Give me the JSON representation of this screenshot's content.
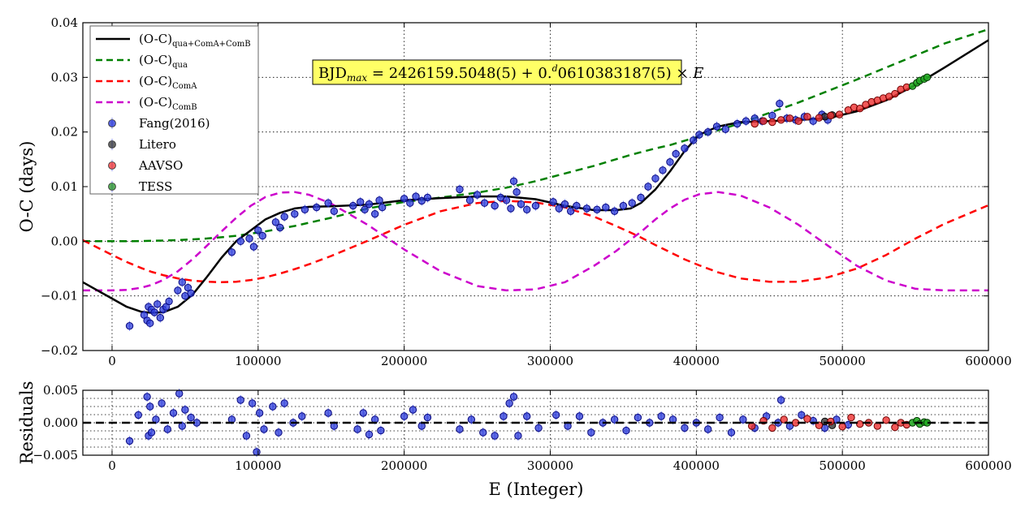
{
  "chart_data": [
    {
      "type": "scatter",
      "panel": "main",
      "ylabel": "O-C (days)",
      "xlim": [
        -20000,
        600000
      ],
      "ylim": [
        -0.02,
        0.04
      ],
      "xticks": [
        0,
        100000,
        200000,
        300000,
        400000,
        500000,
        600000
      ],
      "xtick_labels": [
        "0",
        "100000",
        "200000",
        "300000",
        "400000",
        "500000",
        "600000"
      ],
      "yticks": [
        -0.02,
        -0.01,
        0.0,
        0.01,
        0.02,
        0.03,
        0.04
      ],
      "ytick_labels": [
        "−0.02",
        "−0.01",
        "0.00",
        "0.01",
        "0.02",
        "0.03",
        "0.04"
      ],
      "grid": true,
      "legend_position": "top-left",
      "annotation": {
        "lhs": "BJD",
        "lhs_sub": "max",
        "middle": " = 2426159.5048(5) + 0.",
        "sup": "d",
        "rhs": "0610383187(5) × ",
        "var": "E",
        "background": "#ffff66"
      },
      "legend": [
        {
          "key": "fit",
          "main": "(O-C)",
          "sub": "qua+ComA+ComB",
          "kind": "line",
          "color": "#000000",
          "dashed": false
        },
        {
          "key": "qua",
          "main": "(O-C)",
          "sub": "qua",
          "kind": "line",
          "color": "#008000",
          "dashed": true
        },
        {
          "key": "comA",
          "main": "(O-C)",
          "sub": "ComA",
          "kind": "line",
          "color": "#ff0000",
          "dashed": true
        },
        {
          "key": "comB",
          "main": "(O-C)",
          "sub": "ComB",
          "kind": "line",
          "color": "#cc00cc",
          "dashed": true
        },
        {
          "key": "fang",
          "main": "Fang(2016)",
          "sub": "",
          "kind": "marker",
          "color": "#1020d0"
        },
        {
          "key": "litero",
          "main": "Litero",
          "sub": "",
          "kind": "marker",
          "color": "#222222"
        },
        {
          "key": "aavso",
          "main": "AAVSO",
          "sub": "",
          "kind": "marker",
          "color": "#ee2222"
        },
        {
          "key": "tess",
          "main": "TESS",
          "sub": "",
          "kind": "marker",
          "color": "#118811"
        }
      ],
      "model": {
        "x": [
          -20000,
          0,
          10000,
          20000,
          27000,
          35000,
          45000,
          55000,
          65000,
          75000,
          85000,
          95000,
          105000,
          115000,
          125000,
          135000,
          150000,
          175000,
          200000,
          225000,
          250000,
          270000,
          290000,
          310000,
          330000,
          345000,
          355000,
          362000,
          372000,
          382000,
          392000,
          402000,
          415000,
          430000,
          450000,
          470000,
          490000,
          510000,
          530000,
          550000,
          570000,
          600000
        ],
        "fit": [
          -0.0075,
          -0.0105,
          -0.012,
          -0.0129,
          -0.0131,
          -0.013,
          -0.012,
          -0.0098,
          -0.0065,
          -0.003,
          0.0,
          0.002,
          0.004,
          0.0052,
          0.006,
          0.0063,
          0.0064,
          0.0067,
          0.0075,
          0.0079,
          0.0082,
          0.0082,
          0.0077,
          0.0065,
          0.0057,
          0.0057,
          0.006,
          0.007,
          0.0095,
          0.0128,
          0.0165,
          0.0195,
          0.021,
          0.0218,
          0.022,
          0.0222,
          0.0225,
          0.0238,
          0.0258,
          0.0286,
          0.0318,
          0.0368
        ],
        "qua": [
          0.0,
          0.0,
          1e-05,
          4e-05,
          8e-05,
          0.00013,
          0.00022,
          0.00034,
          0.00051,
          0.00073,
          0.001,
          0.0014,
          0.0018,
          0.0023,
          0.0028,
          0.0034,
          0.0043,
          0.006,
          0.0072,
          0.008,
          0.0089,
          0.0098,
          0.011,
          0.0124,
          0.0138,
          0.015,
          0.0158,
          0.0163,
          0.017,
          0.0176,
          0.0184,
          0.0192,
          0.0203,
          0.0216,
          0.0235,
          0.0254,
          0.0275,
          0.0296,
          0.0318,
          0.034,
          0.0362,
          0.0388
        ],
        "comA": [
          0.0002,
          -0.0025,
          -0.0038,
          -0.0049,
          -0.0056,
          -0.0062,
          -0.0068,
          -0.0072,
          -0.0074,
          -0.0075,
          -0.0074,
          -0.0071,
          -0.0066,
          -0.0059,
          -0.0051,
          -0.0042,
          -0.0027,
          0.0001,
          0.003,
          0.0055,
          0.007,
          0.0074,
          0.0071,
          0.0062,
          0.0045,
          0.0028,
          0.0016,
          0.0007,
          -0.0007,
          -0.002,
          -0.0033,
          -0.0044,
          -0.0057,
          -0.0068,
          -0.0074,
          -0.0074,
          -0.0066,
          -0.005,
          -0.0025,
          0.0005,
          0.0032,
          0.0066
        ],
        "comB": [
          -0.009,
          -0.009,
          -0.0089,
          -0.0085,
          -0.008,
          -0.0071,
          -0.0055,
          -0.0033,
          -0.0008,
          0.0018,
          0.0043,
          0.0065,
          0.0081,
          0.0089,
          0.009,
          0.0085,
          0.0069,
          0.003,
          -0.0015,
          -0.0055,
          -0.0082,
          -0.009,
          -0.0088,
          -0.0075,
          -0.0045,
          -0.0018,
          0.0003,
          0.0017,
          0.004,
          0.006,
          0.0076,
          0.0086,
          0.009,
          0.0084,
          0.0062,
          0.003,
          -0.0008,
          -0.0045,
          -0.0072,
          -0.0087,
          -0.009,
          -0.009
        ]
      },
      "observations": {
        "fang": {
          "x": [
            12000,
            22000,
            24000,
            25000,
            26000,
            27000,
            29000,
            31000,
            33000,
            35000,
            37000,
            39000,
            45000,
            48000,
            50000,
            52000,
            54000,
            82000,
            88000,
            94000,
            97000,
            100000,
            103000,
            112000,
            115000,
            118000,
            125000,
            132000,
            140000,
            148000,
            152000,
            165000,
            170000,
            173000,
            176000,
            180000,
            183000,
            185000,
            200000,
            204000,
            208000,
            212000,
            216000,
            238000,
            245000,
            250000,
            255000,
            262000,
            266000,
            270000,
            273000,
            275000,
            277000,
            280000,
            284000,
            290000,
            302000,
            306000,
            310000,
            314000,
            318000,
            325000,
            332000,
            338000,
            344000,
            350000,
            356000,
            362000,
            367000,
            372000,
            377000,
            382000,
            386000,
            392000,
            398000,
            402000,
            408000,
            414000,
            420000,
            428000,
            434000,
            440000,
            445000,
            452000,
            457000,
            462000,
            468000,
            474000,
            480000,
            486000,
            490000
          ],
          "y": [
            -0.0155,
            -0.0135,
            -0.0145,
            -0.012,
            -0.015,
            -0.0125,
            -0.013,
            -0.0115,
            -0.014,
            -0.0125,
            -0.012,
            -0.011,
            -0.009,
            -0.0075,
            -0.01,
            -0.0085,
            -0.0095,
            -0.002,
            0.0,
            0.0005,
            -0.001,
            0.002,
            0.001,
            0.0035,
            0.0025,
            0.0045,
            0.005,
            0.0058,
            0.0062,
            0.007,
            0.0055,
            0.0065,
            0.0072,
            0.0058,
            0.0068,
            0.005,
            0.0075,
            0.0062,
            0.0078,
            0.007,
            0.0082,
            0.0074,
            0.008,
            0.0095,
            0.0075,
            0.0085,
            0.007,
            0.0065,
            0.008,
            0.0075,
            0.006,
            0.011,
            0.009,
            0.0068,
            0.0058,
            0.0065,
            0.0072,
            0.006,
            0.0068,
            0.0055,
            0.0065,
            0.006,
            0.0058,
            0.0062,
            0.0055,
            0.0065,
            0.007,
            0.008,
            0.01,
            0.0115,
            0.013,
            0.0145,
            0.016,
            0.017,
            0.0185,
            0.0195,
            0.02,
            0.021,
            0.0205,
            0.0215,
            0.022,
            0.0225,
            0.022,
            0.023,
            0.0252,
            0.0225,
            0.0222,
            0.0228,
            0.022,
            0.0232,
            0.0222
          ]
        },
        "litero": {
          "x": [
            488000,
            493000
          ],
          "y": [
            0.0228,
            0.0231
          ]
        },
        "aavso": {
          "x": [
            440000,
            446000,
            452000,
            458000,
            464000,
            470000,
            476000,
            484000,
            492000,
            498000,
            504000,
            508000,
            512000,
            516000,
            520000,
            524000,
            528000,
            532000,
            536000,
            540000,
            544000
          ],
          "y": [
            0.0215,
            0.022,
            0.0218,
            0.0222,
            0.0225,
            0.022,
            0.0228,
            0.0226,
            0.023,
            0.0232,
            0.024,
            0.0245,
            0.0243,
            0.025,
            0.0255,
            0.0258,
            0.0262,
            0.0265,
            0.027,
            0.0278,
            0.0282
          ]
        },
        "tess": {
          "x": [
            548000,
            551000,
            553000,
            556000,
            558000
          ],
          "y": [
            0.0284,
            0.029,
            0.0294,
            0.0297,
            0.03
          ]
        }
      }
    },
    {
      "type": "scatter",
      "panel": "residuals",
      "ylabel": "Residuals",
      "xlabel": "E (Integer)",
      "xlim": [
        -20000,
        600000
      ],
      "ylim": [
        -0.005,
        0.005
      ],
      "xticks": [
        0,
        100000,
        200000,
        300000,
        400000,
        500000,
        600000
      ],
      "xtick_labels": [
        "0",
        "100000",
        "200000",
        "300000",
        "400000",
        "500000",
        "600000"
      ],
      "yticks": [
        -0.005,
        0.0,
        0.005
      ],
      "ytick_labels": [
        "−0.005",
        "0.000",
        "0.005"
      ],
      "zero_line": 0.0,
      "observations": {
        "fang": {
          "x": [
            12000,
            18000,
            24000,
            25000,
            26000,
            27000,
            30000,
            34000,
            38000,
            42000,
            46000,
            48000,
            50000,
            54000,
            58000,
            82000,
            88000,
            92000,
            96000,
            99000,
            101000,
            104000,
            110000,
            114000,
            118000,
            124000,
            130000,
            148000,
            152000,
            168000,
            172000,
            176000,
            180000,
            184000,
            200000,
            206000,
            212000,
            216000,
            238000,
            246000,
            254000,
            262000,
            268000,
            272000,
            275000,
            278000,
            284000,
            292000,
            304000,
            312000,
            320000,
            328000,
            336000,
            344000,
            352000,
            360000,
            368000,
            376000,
            384000,
            392000,
            400000,
            408000,
            416000,
            424000,
            432000,
            440000,
            448000,
            456000,
            458000,
            464000,
            472000,
            480000,
            488000,
            496000,
            504000
          ],
          "y": [
            -0.0028,
            0.0012,
            0.004,
            -0.002,
            0.0025,
            -0.0015,
            0.0005,
            0.003,
            -0.001,
            0.0015,
            0.0045,
            -0.0005,
            0.002,
            0.0008,
            0.0,
            0.0005,
            0.0035,
            -0.002,
            0.003,
            -0.0045,
            0.0015,
            -0.001,
            0.0025,
            -0.0015,
            0.003,
            0.0,
            0.001,
            0.0015,
            -0.0005,
            -0.001,
            0.0015,
            -0.0018,
            0.0005,
            -0.0012,
            0.001,
            0.002,
            -0.0005,
            0.0008,
            -0.001,
            0.0005,
            -0.0015,
            -0.002,
            0.001,
            0.003,
            0.004,
            -0.002,
            0.001,
            -0.0008,
            0.0012,
            -0.0005,
            0.001,
            -0.0015,
            0.0,
            0.0005,
            -0.0012,
            0.0008,
            0.0,
            0.001,
            0.0005,
            -0.0008,
            0.0,
            -0.001,
            0.0008,
            -0.0015,
            0.0005,
            -0.0008,
            0.001,
            0.0,
            0.0035,
            -0.0005,
            0.0012,
            0.0003,
            -0.0008,
            0.0005,
            -0.0003
          ]
        },
        "litero": {
          "x": [
            488000,
            493000
          ],
          "y": [
            0.0002,
            -0.0004
          ]
        },
        "aavso": {
          "x": [
            438000,
            446000,
            452000,
            460000,
            468000,
            476000,
            484000,
            492000,
            500000,
            506000,
            512000,
            518000,
            524000,
            530000,
            536000,
            540000,
            544000
          ],
          "y": [
            -0.0005,
            0.0003,
            -0.0008,
            0.0005,
            0.0,
            0.0006,
            -0.0004,
            0.0002,
            -0.0006,
            0.0008,
            -0.0002,
            0.0,
            -0.0005,
            0.0004,
            -0.0007,
            0.0,
            -0.0003
          ]
        },
        "tess": {
          "x": [
            548000,
            551000,
            553000,
            556000,
            558000
          ],
          "y": [
            0.0,
            0.0003,
            -0.0002,
            0.0001,
            0.0
          ]
        }
      }
    }
  ]
}
